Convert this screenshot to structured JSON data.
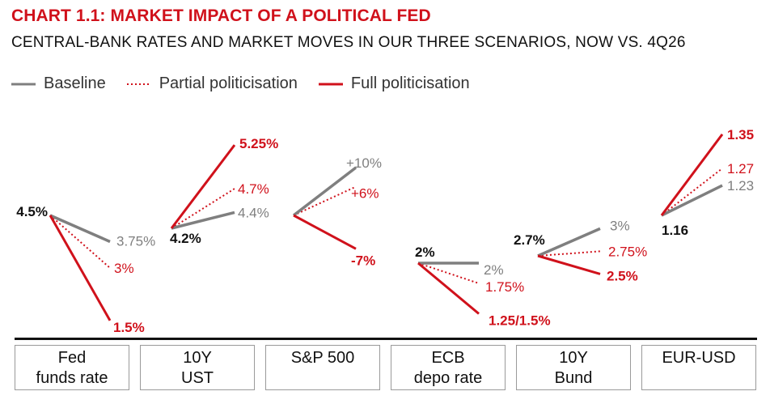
{
  "title": "CHART 1.1: MARKET IMPACT OF A POLITICAL FED",
  "subtitle": "CENTRAL-BANK RATES AND MARKET MOVES IN OUR THREE SCENARIOS, NOW VS. 4Q26",
  "legend": {
    "baseline": "Baseline",
    "partial": "Partial politicisation",
    "full": "Full politicisation"
  },
  "colors": {
    "baseline": "#7f7f7f",
    "politicisation": "#d0111b",
    "text": "#111111"
  },
  "chart_data": {
    "type": "line",
    "title": "CHART 1.1: MARKET IMPACT OF A POLITICAL FED",
    "subtitle": "CENTRAL-BANK RATES AND MARKET MOVES IN OUR THREE SCENARIOS, NOW VS. 4Q26",
    "series": [
      "Baseline",
      "Partial politicisation",
      "Full politicisation"
    ],
    "panels": [
      {
        "label": "Fed\nfunds rate",
        "now": 4.5,
        "now_label": "4.5%",
        "baseline": 3.75,
        "baseline_label": "3.75%",
        "partial": 3.0,
        "partial_label": "3%",
        "full": 1.5,
        "full_label": "1.5%"
      },
      {
        "label": "10Y\nUST",
        "now": 4.2,
        "now_label": "4.2%",
        "baseline": 4.4,
        "baseline_label": "4.4%",
        "partial": 4.7,
        "partial_label": "4.7%",
        "full": 5.25,
        "full_label": "5.25%"
      },
      {
        "label": "S&P 500",
        "now": 0,
        "now_label": "",
        "baseline": 10,
        "baseline_label": "+10%",
        "partial": 6,
        "partial_label": "+6%",
        "full": -7,
        "full_label": "-7%"
      },
      {
        "label": "ECB\ndepo rate",
        "now": 2.0,
        "now_label": "2%",
        "baseline": 2.0,
        "baseline_label": "2%",
        "partial": 1.75,
        "partial_label": "1.75%",
        "full": 1.375,
        "full_label": "1.25/1.5%"
      },
      {
        "label": "10Y\nBund",
        "now": 2.7,
        "now_label": "2.7%",
        "baseline": 3.0,
        "baseline_label": "3%",
        "partial": 2.75,
        "partial_label": "2.75%",
        "full": 2.5,
        "full_label": "2.5%"
      },
      {
        "label": "EUR-USD",
        "now": 1.16,
        "now_label": "1.16",
        "baseline": 1.23,
        "baseline_label": "1.23",
        "partial": 1.27,
        "partial_label": "1.27",
        "full": 1.35,
        "full_label": "1.35"
      }
    ]
  }
}
